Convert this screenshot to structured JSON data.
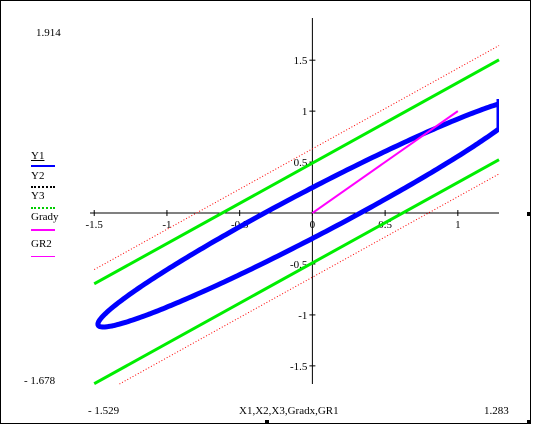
{
  "chart_data": {
    "type": "line",
    "xlabel": "X1,X2,X3,Gradx,GR1",
    "xlim": [
      -1.529,
      1.283
    ],
    "ylim": [
      -1.678,
      1.914
    ],
    "xlim_labels": [
      "- 1.529",
      "1.283"
    ],
    "ylim_labels": [
      "1.914",
      "- 1.678"
    ],
    "x_ticks": [
      -1.5,
      -1,
      -0.5,
      0,
      0.5,
      1
    ],
    "x_tick_labels": [
      "-1.5",
      "-1",
      "-0.5",
      "0",
      "0.5",
      "1"
    ],
    "y_ticks": [
      -1.5,
      -1,
      -0.5,
      0.5,
      1,
      1.5
    ],
    "y_tick_labels": [
      "-1.5",
      "-1",
      "-0.5",
      "0.5",
      "1",
      "1.5"
    ],
    "grid": false,
    "legend_position": "left",
    "series": [
      {
        "name": "Y1",
        "color": "#0000ff",
        "style": "solid-thick",
        "shape": "ellipse",
        "center": [
          0,
          0
        ],
        "rotation_deg": 37,
        "semi_major": 1.84,
        "semi_minor": 0.2
      },
      {
        "name": "Y2",
        "color": "#ff0000",
        "style": "dotted",
        "lines": [
          {
            "slope": 0.79,
            "intercept": 0.63
          },
          {
            "slope": 0.79,
            "intercept": -0.63
          }
        ],
        "x_range": [
          -1.5,
          1.283
        ]
      },
      {
        "name": "Y3",
        "color": "#00ee00",
        "style": "solid-medium",
        "lines": [
          {
            "slope": 0.79,
            "intercept": 0.49
          },
          {
            "slope": 0.79,
            "intercept": -0.49
          }
        ],
        "x_range": [
          -1.5,
          1.283
        ]
      },
      {
        "name": "Grady",
        "color": "#ff00ff",
        "style": "solid",
        "x": [
          0,
          1
        ],
        "y": [
          0,
          1
        ]
      },
      {
        "name": "GR2",
        "color": "#ff00ff",
        "style": "solid",
        "x": [],
        "y": []
      }
    ]
  }
}
